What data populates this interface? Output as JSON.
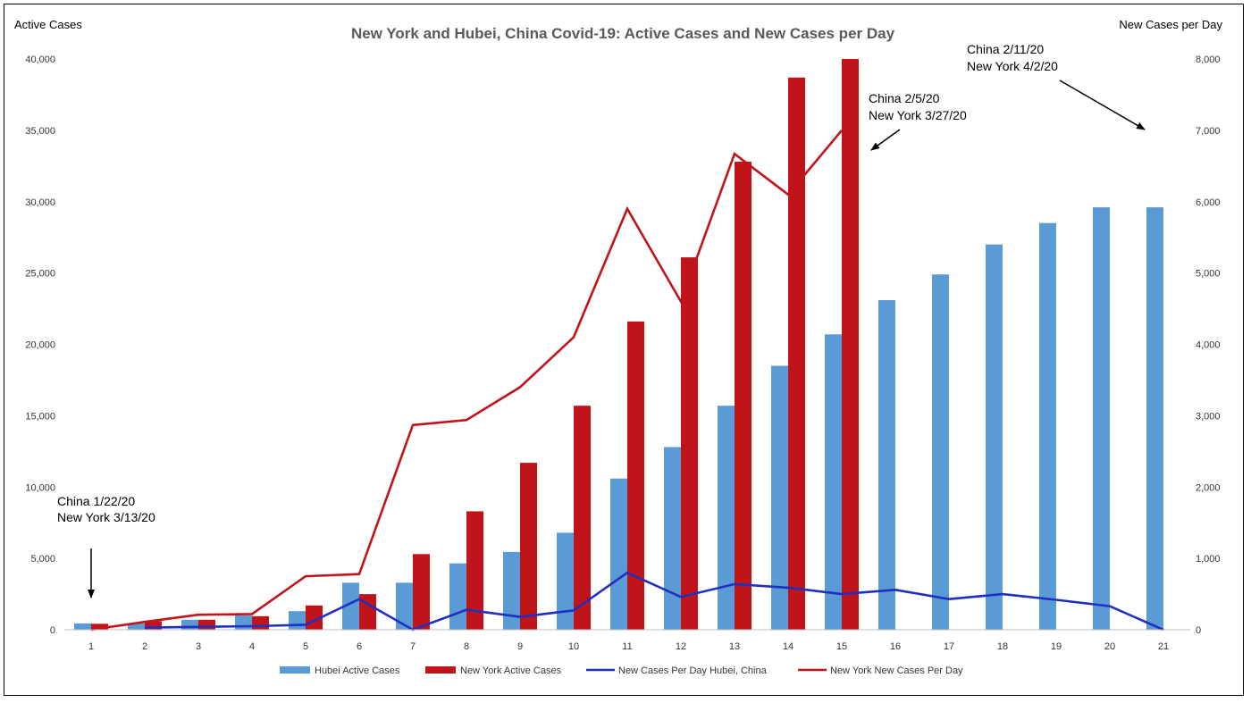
{
  "chart_data": {
    "type": "bar",
    "title": "New York and Hubei, China Covid-19: Active Cases and New Cases per Day",
    "ylabel": "Active Cases",
    "y2label": "New Cases per Day",
    "categories": [
      "1",
      "2",
      "3",
      "4",
      "5",
      "6",
      "7",
      "8",
      "9",
      "10",
      "11",
      "12",
      "13",
      "14",
      "15",
      "16",
      "17",
      "18",
      "19",
      "20",
      "21"
    ],
    "ylim": [
      0,
      40000
    ],
    "y2lim": [
      0,
      8000
    ],
    "yticks": [
      "0",
      "5,000",
      "10,000",
      "15,000",
      "20,000",
      "25,000",
      "30,000",
      "35,000",
      "40,000"
    ],
    "y2ticks": [
      "0",
      "1,000",
      "2,000",
      "3,000",
      "4,000",
      "5,000",
      "6,000",
      "7,000",
      "8,000"
    ],
    "grid": false,
    "legend": "bottom",
    "series": [
      {
        "name": "Hubei Active Cases",
        "kind": "bar",
        "axis": "left",
        "color": "#5b9bd5",
        "values": [
          440,
          440,
          700,
          1000,
          1300,
          3300,
          3300,
          4650,
          5450,
          6800,
          10600,
          12800,
          15700,
          18500,
          20700,
          23100,
          24900,
          27000,
          28500,
          29600,
          29600
        ]
      },
      {
        "name": "New York Active Cases",
        "kind": "bar",
        "axis": "left",
        "color": "#c0141b",
        "values": [
          420,
          600,
          700,
          950,
          1700,
          2500,
          5300,
          8300,
          11700,
          15700,
          21600,
          26100,
          32800,
          38700,
          40000,
          null,
          null,
          null,
          null,
          null,
          null
        ]
      },
      {
        "name": "New Cases Per Day Hubei, China",
        "kind": "line",
        "axis": "right",
        "color": "#1f2fbf",
        "values": [
          null,
          30,
          40,
          50,
          70,
          430,
          0,
          280,
          180,
          270,
          800,
          460,
          640,
          590,
          500,
          560,
          430,
          500,
          420,
          330,
          0
        ]
      },
      {
        "name": "New York New Cases Per Day",
        "kind": "line",
        "axis": "right",
        "color": "#c0141b",
        "values": [
          0,
          110,
          210,
          220,
          750,
          780,
          2870,
          2940,
          3400,
          4100,
          5900,
          4600,
          6670,
          6100,
          7000,
          null,
          null,
          null,
          null,
          null,
          null
        ]
      }
    ],
    "annotations": [
      {
        "lines": [
          "China 1/22/20",
          "New York 3/13/20"
        ]
      },
      {
        "lines": [
          "China 2/5/20",
          "New York 3/27/20"
        ]
      },
      {
        "lines": [
          "China 2/11/20",
          "New York 4/2/20"
        ]
      }
    ]
  }
}
